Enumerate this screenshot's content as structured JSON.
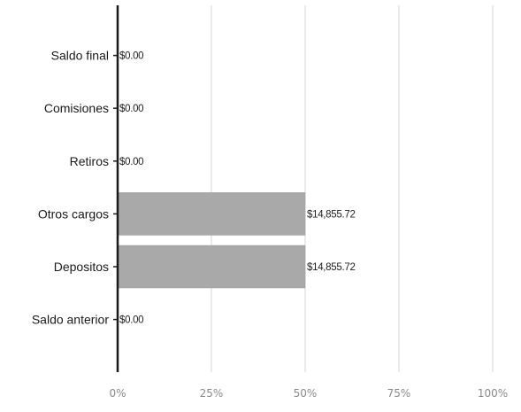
{
  "chart_data": {
    "type": "bar",
    "orientation": "horizontal",
    "stacked_percent": true,
    "categories": [
      "Saldo final",
      "Comisiones",
      "Retiros",
      "Otros cargos",
      "Depositos",
      "Saldo anterior"
    ],
    "values": [
      0.0,
      0.0,
      0.0,
      14855.72,
      14855.72,
      0.0
    ],
    "data_labels": [
      "$0.00",
      "$0.00",
      "$0.00",
      "$14,855.72",
      "$14,855.72",
      "$0.00"
    ],
    "percent_of_axis": [
      0,
      0,
      0,
      50,
      50,
      0
    ],
    "x_ticks": [
      "0%",
      "25%",
      "50%",
      "75%",
      "100%"
    ],
    "xlim": [
      0,
      100
    ],
    "grid": true,
    "legend": "none",
    "bar_color": "#a9a9a9",
    "axis_color": "#1a1a1a",
    "grid_color": "#d4d4d4"
  }
}
